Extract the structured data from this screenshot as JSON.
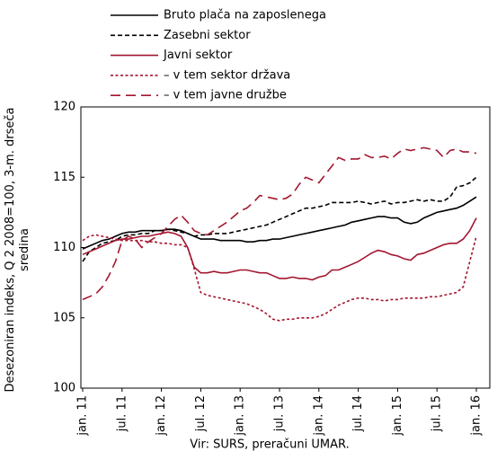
{
  "chart_data": {
    "type": "line",
    "ylabel": "Desezoniran indeks, Q 2 2008=100, 3-m. drseča sredina",
    "source": "Vir: SURS, preračuni UMAR.",
    "categories": [
      "jan. 11",
      null,
      null,
      null,
      null,
      null,
      "jul. 11",
      null,
      null,
      null,
      null,
      null,
      "jan. 12",
      null,
      null,
      null,
      null,
      null,
      "jul. 12",
      null,
      null,
      null,
      null,
      null,
      "jan. 13",
      null,
      null,
      null,
      null,
      null,
      "jul. 13",
      null,
      null,
      null,
      null,
      null,
      "jan. 14",
      null,
      null,
      null,
      null,
      null,
      "jul. 14",
      null,
      null,
      null,
      null,
      null,
      "jan. 15",
      null,
      null,
      null,
      null,
      null,
      "jul. 15",
      null,
      null,
      null,
      null,
      null,
      "jan. 16"
    ],
    "ylim": [
      100,
      120
    ],
    "yticks": [
      100,
      105,
      110,
      115,
      120
    ],
    "series": [
      {
        "name": "Bruto plača na zaposlenega",
        "color": "#000000",
        "dash": "solid",
        "values": [
          109.9,
          110.1,
          110.3,
          110.5,
          110.6,
          110.8,
          111.0,
          111.1,
          111.1,
          111.2,
          111.2,
          111.2,
          111.2,
          111.3,
          111.3,
          111.2,
          111.0,
          110.8,
          110.6,
          110.6,
          110.6,
          110.5,
          110.5,
          110.5,
          110.5,
          110.4,
          110.4,
          110.5,
          110.5,
          110.6,
          110.6,
          110.7,
          110.8,
          110.9,
          111.0,
          111.1,
          111.2,
          111.3,
          111.4,
          111.5,
          111.6,
          111.8,
          111.9,
          112.0,
          112.1,
          112.2,
          112.2,
          112.1,
          112.1,
          111.8,
          111.7,
          111.8,
          112.1,
          112.3,
          112.5,
          112.6,
          112.7,
          112.8,
          113.0,
          113.3,
          113.6
        ]
      },
      {
        "name": "Zasebni sektor",
        "color": "#000000",
        "dash": "dashed",
        "values": [
          109.0,
          109.7,
          110.0,
          110.3,
          110.4,
          110.5,
          110.8,
          110.9,
          110.9,
          111.0,
          111.0,
          111.2,
          111.2,
          111.3,
          111.2,
          111.1,
          111.0,
          110.8,
          110.9,
          110.9,
          111.0,
          111.0,
          111.0,
          111.1,
          111.2,
          111.3,
          111.4,
          111.5,
          111.6,
          111.8,
          112.0,
          112.2,
          112.4,
          112.6,
          112.8,
          112.8,
          112.9,
          113.0,
          113.2,
          113.2,
          113.2,
          113.2,
          113.3,
          113.2,
          113.1,
          113.2,
          113.3,
          113.1,
          113.2,
          113.2,
          113.3,
          113.4,
          113.3,
          113.4,
          113.3,
          113.3,
          113.6,
          114.3,
          114.4,
          114.6,
          115.0
        ]
      },
      {
        "name": "Javni sektor",
        "color": "#a3152e",
        "dash": "solid",
        "values": [
          109.5,
          109.7,
          109.9,
          110.1,
          110.3,
          110.5,
          110.6,
          110.6,
          110.7,
          110.8,
          110.8,
          110.9,
          111.0,
          111.1,
          111.0,
          110.8,
          110.0,
          108.6,
          108.2,
          108.2,
          108.3,
          108.2,
          108.2,
          108.3,
          108.4,
          108.4,
          108.3,
          108.2,
          108.2,
          108.0,
          107.8,
          107.8,
          107.9,
          107.8,
          107.8,
          107.7,
          107.9,
          108.0,
          108.4,
          108.4,
          108.6,
          108.8,
          109.0,
          109.3,
          109.6,
          109.8,
          109.7,
          109.5,
          109.4,
          109.2,
          109.1,
          109.5,
          109.6,
          109.8,
          110.0,
          110.2,
          110.3,
          110.3,
          110.6,
          111.2,
          112.1
        ]
      },
      {
        "name": "– v tem sektor država",
        "color": "#a3152e",
        "dash": "dotted",
        "values": [
          110.5,
          110.8,
          110.9,
          110.8,
          110.7,
          110.6,
          110.5,
          110.5,
          110.5,
          110.5,
          110.4,
          110.4,
          110.3,
          110.3,
          110.2,
          110.2,
          110.0,
          108.5,
          106.8,
          106.6,
          106.5,
          106.4,
          106.3,
          106.2,
          106.1,
          106.0,
          105.8,
          105.6,
          105.3,
          104.9,
          104.8,
          104.9,
          104.9,
          105.0,
          105.0,
          105.0,
          105.1,
          105.3,
          105.6,
          105.9,
          106.1,
          106.3,
          106.4,
          106.4,
          106.3,
          106.3,
          106.2,
          106.3,
          106.3,
          106.4,
          106.4,
          106.4,
          106.4,
          106.5,
          106.5,
          106.6,
          106.7,
          106.8,
          107.2,
          109.0,
          110.8
        ]
      },
      {
        "name": "– v tem javne družbe",
        "color": "#a3152e",
        "dash": "longdash",
        "values": [
          106.3,
          106.5,
          106.7,
          107.2,
          108.0,
          109.0,
          110.5,
          110.8,
          110.6,
          110.0,
          110.4,
          110.7,
          111.0,
          111.5,
          112.0,
          112.3,
          111.8,
          111.2,
          111.0,
          110.9,
          111.2,
          111.5,
          111.8,
          112.2,
          112.6,
          112.8,
          113.2,
          113.7,
          113.6,
          113.5,
          113.4,
          113.5,
          113.8,
          114.5,
          115.0,
          114.8,
          114.6,
          115.2,
          115.8,
          116.4,
          116.2,
          116.3,
          116.3,
          116.6,
          116.4,
          116.4,
          116.5,
          116.3,
          116.7,
          117.0,
          116.9,
          117.0,
          117.1,
          117.0,
          116.9,
          116.4,
          116.9,
          117.0,
          116.8,
          116.8,
          116.7
        ]
      }
    ]
  }
}
